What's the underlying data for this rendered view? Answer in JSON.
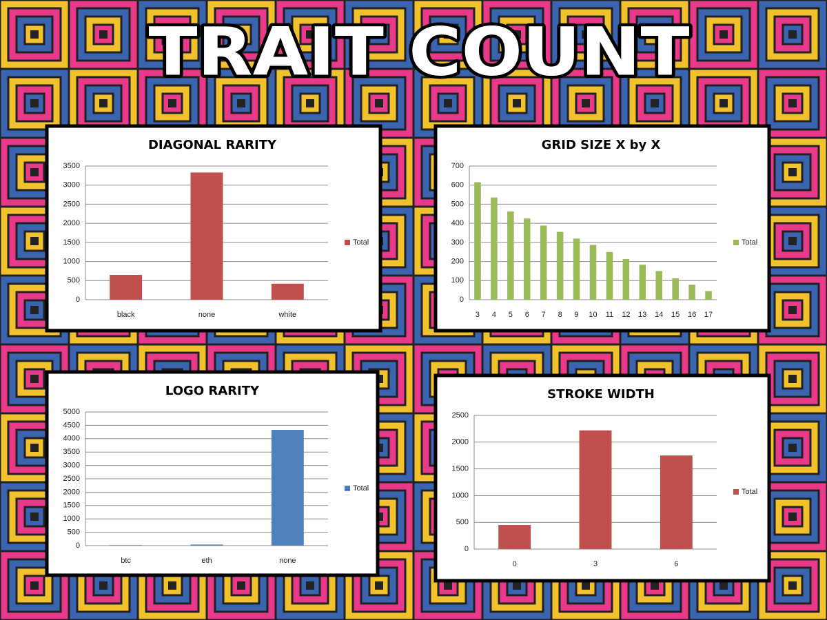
{
  "title": "TRAIT COUNT",
  "chart_data": [
    {
      "type": "bar",
      "title": "DIAGONAL RARITY",
      "categories": [
        "black",
        "none",
        "white"
      ],
      "series": [
        {
          "name": "Total",
          "color": "#c0504d",
          "values": [
            650,
            3330,
            420
          ]
        }
      ],
      "ylim": [
        0,
        3500
      ],
      "yticks": [
        0,
        500,
        1000,
        1500,
        2000,
        2500,
        3000,
        3500
      ],
      "grid": true,
      "legend": "right"
    },
    {
      "type": "bar",
      "title": "GRID SIZE X by X",
      "categories": [
        "3",
        "4",
        "5",
        "6",
        "7",
        "8",
        "9",
        "10",
        "11",
        "12",
        "13",
        "14",
        "15",
        "16",
        "17"
      ],
      "series": [
        {
          "name": "Total",
          "color": "#9bbb59",
          "values": [
            615,
            535,
            462,
            425,
            388,
            355,
            320,
            287,
            250,
            213,
            183,
            150,
            112,
            78,
            45
          ]
        }
      ],
      "ylim": [
        0,
        700
      ],
      "yticks": [
        0,
        100,
        200,
        300,
        400,
        500,
        600,
        700
      ],
      "grid": true,
      "legend": "right"
    },
    {
      "type": "bar",
      "title": "LOGO RARITY",
      "categories": [
        "btc",
        "eth",
        "none"
      ],
      "series": [
        {
          "name": "Total",
          "color": "#4f81bd",
          "values": [
            20,
            40,
            4330
          ]
        }
      ],
      "ylim": [
        0,
        5000
      ],
      "yticks": [
        0,
        500,
        1000,
        1500,
        2000,
        2500,
        3000,
        3500,
        4000,
        4500,
        5000
      ],
      "grid": true,
      "legend": "right"
    },
    {
      "type": "bar",
      "title": "STROKE WIDTH",
      "categories": [
        "0",
        "3",
        "6"
      ],
      "series": [
        {
          "name": "Total",
          "color": "#c0504d",
          "values": [
            450,
            2220,
            1750
          ]
        }
      ],
      "ylim": [
        0,
        2500
      ],
      "yticks": [
        0,
        500,
        1000,
        1500,
        2000,
        2500
      ],
      "grid": true,
      "legend": "right"
    }
  ]
}
